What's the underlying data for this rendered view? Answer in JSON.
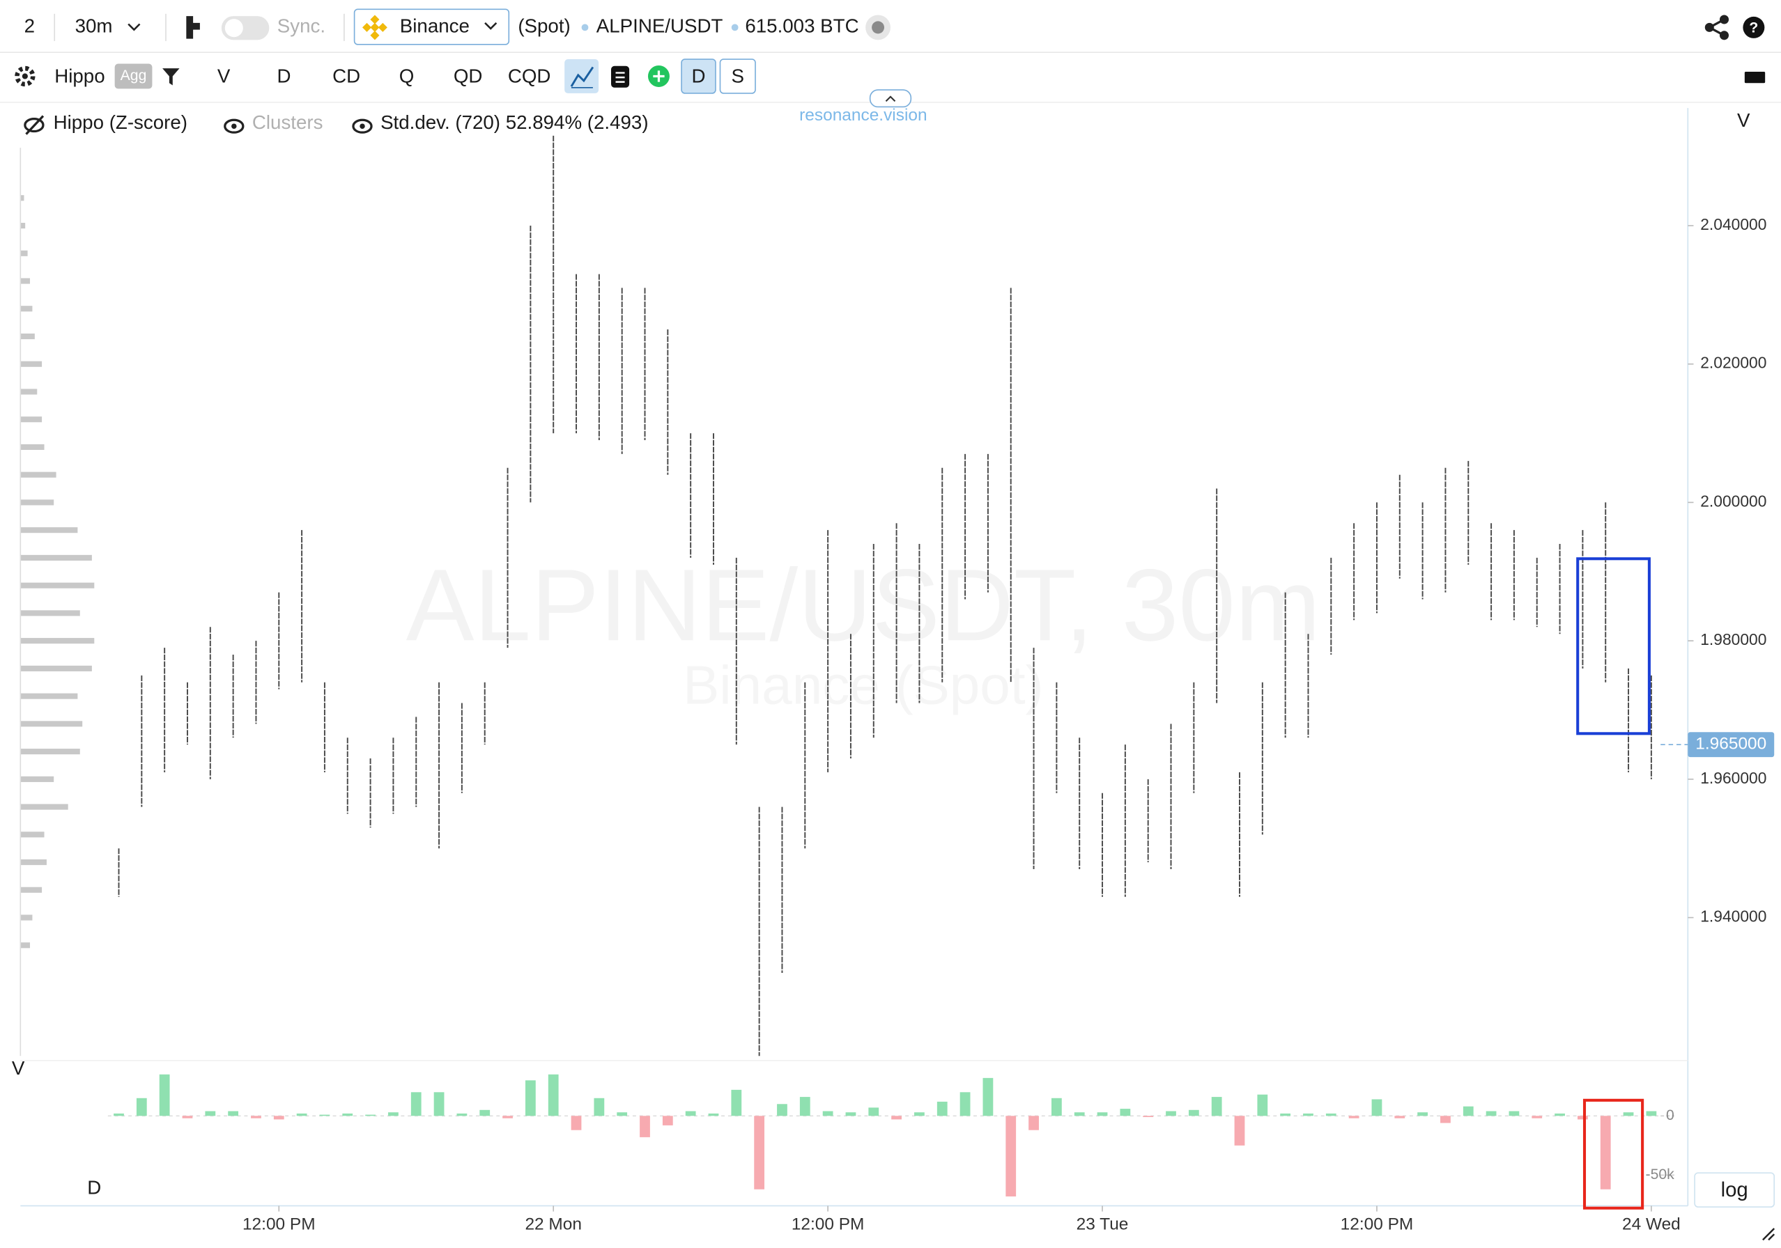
{
  "toolbar": {
    "layout_count": "2",
    "interval": "30m",
    "sync": "Sync.",
    "exchange": "Binance",
    "market": "(Spot)",
    "symbol": "ALPINE/USDT",
    "volume": "615.003 BTC",
    "indicator": "Hippo",
    "agg": "Agg",
    "buttons": [
      "V",
      "D",
      "CD",
      "Q",
      "QD",
      "CQD"
    ],
    "toggles": [
      "D",
      "S"
    ]
  },
  "legend": {
    "hippo": "Hippo (Z-score)",
    "clusters": "Clusters",
    "stddev": "Std.dev. (720) 52.894% (2.493)",
    "brand": "resonance.vision"
  },
  "pane_labels": {
    "price_axis": "V",
    "volume_pane": "V",
    "delta_pane": "D",
    "log": "log"
  },
  "chart_data": [
    {
      "type": "range",
      "watermark": "ALPINE/USDT, 30m",
      "watermark_sub": "Binance (Spot)",
      "color": "#4a4a4a",
      "x": [
        5,
        6,
        7,
        8,
        9,
        10,
        11,
        12,
        13,
        14,
        15,
        16,
        17,
        18,
        19,
        20,
        21,
        22,
        23,
        24,
        25,
        26,
        27,
        28,
        29,
        30,
        31,
        32,
        33,
        34,
        35,
        36,
        37,
        38,
        39,
        40,
        41,
        42,
        43,
        44,
        45,
        46,
        47,
        48,
        49,
        50,
        51,
        52,
        53,
        54,
        55,
        56,
        57,
        58,
        59,
        60,
        61,
        62,
        63,
        64,
        65,
        66,
        67,
        68,
        69,
        70,
        71,
        72
      ],
      "high": [
        1.95,
        1.975,
        1.979,
        1.974,
        1.982,
        1.978,
        1.98,
        1.987,
        1.996,
        1.974,
        1.966,
        1.963,
        1.966,
        1.969,
        1.974,
        1.971,
        1.974,
        2.005,
        2.04,
        2.053,
        2.033,
        2.033,
        2.031,
        2.031,
        2.025,
        2.01,
        2.01,
        1.992,
        1.956,
        1.956,
        1.974,
        1.996,
        1.981,
        1.994,
        1.997,
        1.994,
        2.005,
        2.007,
        2.007,
        2.031,
        1.979,
        1.974,
        1.966,
        1.958,
        1.965,
        1.96,
        1.968,
        1.974,
        2.002,
        1.961,
        1.974,
        1.987,
        1.981,
        1.992,
        1.997,
        2.0,
        2.004,
        2.0,
        2.005,
        2.006,
        1.997,
        1.996,
        1.992,
        1.994,
        1.996,
        2.0,
        1.976,
        1.975
      ],
      "low": [
        1.943,
        1.956,
        1.961,
        1.965,
        1.96,
        1.966,
        1.968,
        1.973,
        1.974,
        1.961,
        1.955,
        1.953,
        1.955,
        1.956,
        1.95,
        1.958,
        1.965,
        1.979,
        2.0,
        2.01,
        2.01,
        2.009,
        2.007,
        2.009,
        2.004,
        1.992,
        1.991,
        1.965,
        1.92,
        1.932,
        1.95,
        1.961,
        1.963,
        1.966,
        1.971,
        1.971,
        1.974,
        1.986,
        1.987,
        1.974,
        1.947,
        1.958,
        1.947,
        1.943,
        1.943,
        1.948,
        1.947,
        1.958,
        1.971,
        1.943,
        1.952,
        1.966,
        1.966,
        1.978,
        1.983,
        1.984,
        1.989,
        1.986,
        1.987,
        1.991,
        1.983,
        1.983,
        1.982,
        1.981,
        1.976,
        1.974,
        1.961,
        1.96
      ],
      "xlim": [
        0.7,
        73.3
      ],
      "xticks": [
        {
          "value": 12,
          "label": "12:00 PM"
        },
        {
          "value": 24,
          "label": "22 Mon"
        },
        {
          "value": 36,
          "label": "12:00 PM"
        },
        {
          "value": 48,
          "label": "23 Tue"
        },
        {
          "value": 60,
          "label": "12:00 PM"
        },
        {
          "value": 72,
          "label": "24 Wed"
        }
      ],
      "ylim": [
        1.92,
        2.057
      ],
      "yticks": [
        {
          "value": 1.94,
          "label": "1.940000"
        },
        {
          "value": 1.96,
          "label": "1.960000"
        },
        {
          "value": 1.98,
          "label": "1.980000"
        },
        {
          "value": 2.0,
          "label": "2.000000"
        },
        {
          "value": 2.02,
          "label": "2.020000"
        },
        {
          "value": 2.04,
          "label": "2.040000"
        }
      ],
      "current_price": {
        "value": 1.965,
        "label": "1.965000"
      },
      "volume_profile": {
        "color": "#c8c8c8",
        "prices": [
          1.936,
          1.94,
          1.944,
          1.948,
          1.952,
          1.956,
          1.96,
          1.964,
          1.968,
          1.972,
          1.976,
          1.98,
          1.984,
          1.988,
          1.992,
          1.996,
          2.0,
          2.004,
          2.008,
          2.012,
          2.016,
          2.02,
          2.024,
          2.028,
          2.032,
          2.036,
          2.04,
          2.044
        ],
        "values": [
          8,
          10,
          18,
          22,
          20,
          40,
          28,
          50,
          52,
          48,
          60,
          62,
          50,
          62,
          60,
          48,
          28,
          30,
          20,
          18,
          14,
          18,
          12,
          10,
          8,
          6,
          4,
          3
        ]
      }
    },
    {
      "type": "bar",
      "pos_color": "#8fe0b0",
      "neg_color": "#f7aab0",
      "x": [
        5,
        6,
        7,
        8,
        9,
        10,
        11,
        12,
        13,
        14,
        15,
        16,
        17,
        18,
        19,
        20,
        21,
        22,
        23,
        24,
        25,
        26,
        27,
        28,
        29,
        30,
        31,
        32,
        33,
        34,
        35,
        36,
        37,
        38,
        39,
        40,
        41,
        42,
        43,
        44,
        45,
        46,
        47,
        48,
        49,
        50,
        51,
        52,
        53,
        54,
        55,
        56,
        57,
        58,
        59,
        60,
        61,
        62,
        63,
        64,
        65,
        66,
        67,
        68,
        69,
        70,
        71,
        72
      ],
      "values": [
        2000,
        15000,
        35000,
        -2000,
        4000,
        4000,
        -2000,
        -3000,
        2000,
        1000,
        2000,
        1000,
        3000,
        20000,
        20000,
        2000,
        5000,
        -2000,
        30000,
        35000,
        -12000,
        15000,
        3000,
        -18000,
        -8000,
        4000,
        2000,
        22000,
        -62000,
        10000,
        16000,
        4000,
        3000,
        7000,
        -3000,
        3000,
        12000,
        20000,
        32000,
        -68000,
        -12000,
        15000,
        3000,
        3000,
        6000,
        -1000,
        4000,
        5000,
        16000,
        -25000,
        18000,
        2000,
        2000,
        2000,
        -2000,
        14000,
        -2000,
        3000,
        -6000,
        8000,
        4000,
        4000,
        -2000,
        2000,
        -3000,
        -62000,
        3000,
        4000
      ],
      "xlim": [
        0.7,
        73.3
      ],
      "ylim": [
        -74000,
        41000
      ],
      "yticks": [
        0,
        {
          "value": -50000,
          "label": "-50k"
        }
      ]
    }
  ]
}
